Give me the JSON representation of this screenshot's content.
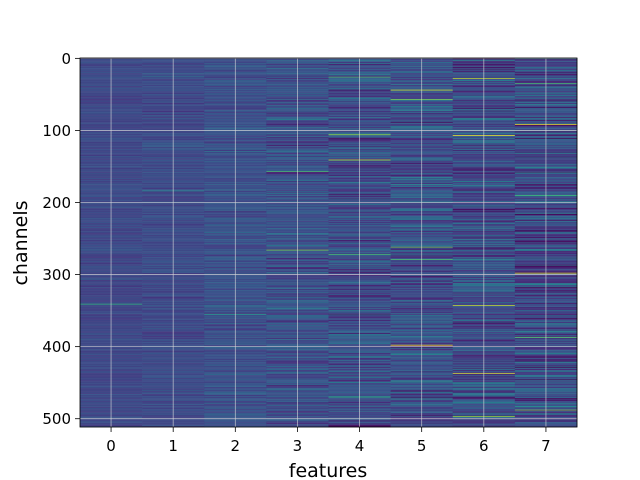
{
  "chart_data": {
    "type": "heatmap",
    "title": "",
    "xlabel": "features",
    "ylabel": "channels",
    "x_categories": [
      "0",
      "1",
      "2",
      "3",
      "4",
      "5",
      "6",
      "7"
    ],
    "y_ticks": [
      "0",
      "100",
      "200",
      "300",
      "400",
      "500"
    ],
    "n_rows": 512,
    "n_cols": 8,
    "colormap": "viridis",
    "grid": true,
    "legend": "none",
    "column_stats": [
      {
        "feature": "0",
        "base_level": 0.22,
        "spread": 0.06
      },
      {
        "feature": "1",
        "base_level": 0.23,
        "spread": 0.07
      },
      {
        "feature": "2",
        "base_level": 0.25,
        "spread": 0.09
      },
      {
        "feature": "3",
        "base_level": 0.25,
        "spread": 0.14
      },
      {
        "feature": "4",
        "base_level": 0.24,
        "spread": 0.17
      },
      {
        "feature": "5",
        "base_level": 0.24,
        "spread": 0.19
      },
      {
        "feature": "6",
        "base_level": 0.23,
        "spread": 0.2
      },
      {
        "feature": "7",
        "base_level": 0.23,
        "spread": 0.21
      }
    ],
    "highlights": [
      {
        "feature": "0",
        "channel": 341,
        "value": 0.65
      },
      {
        "feature": "1",
        "channel": 184,
        "value": 0.45
      },
      {
        "feature": "2",
        "channel": 355,
        "value": 0.55
      },
      {
        "feature": "3",
        "channel": 157,
        "value": 0.7
      },
      {
        "feature": "3",
        "channel": 266,
        "value": 0.82
      },
      {
        "feature": "4",
        "channel": 26,
        "value": 0.72
      },
      {
        "feature": "4",
        "channel": 106,
        "value": 0.85
      },
      {
        "feature": "4",
        "channel": 141,
        "value": 0.92
      },
      {
        "feature": "4",
        "channel": 272,
        "value": 0.7
      },
      {
        "feature": "4",
        "channel": 470,
        "value": 0.65
      },
      {
        "feature": "5",
        "channel": 44,
        "value": 0.95
      },
      {
        "feature": "5",
        "channel": 57,
        "value": 0.8
      },
      {
        "feature": "5",
        "channel": 262,
        "value": 0.78
      },
      {
        "feature": "5",
        "channel": 279,
        "value": 0.72
      },
      {
        "feature": "5",
        "channel": 398,
        "value": 0.98
      },
      {
        "feature": "6",
        "channel": 28,
        "value": 0.9
      },
      {
        "feature": "6",
        "channel": 107,
        "value": 0.98
      },
      {
        "feature": "6",
        "channel": 343,
        "value": 0.92
      },
      {
        "feature": "6",
        "channel": 437,
        "value": 0.96
      },
      {
        "feature": "6",
        "channel": 497,
        "value": 0.85
      },
      {
        "feature": "7",
        "channel": 35,
        "value": 0.7
      },
      {
        "feature": "7",
        "channel": 92,
        "value": 0.98
      },
      {
        "feature": "7",
        "channel": 190,
        "value": 0.68
      },
      {
        "feature": "7",
        "channel": 298,
        "value": 0.95
      },
      {
        "feature": "7",
        "channel": 387,
        "value": 0.75
      },
      {
        "feature": "7",
        "channel": 488,
        "value": 0.8
      }
    ]
  }
}
